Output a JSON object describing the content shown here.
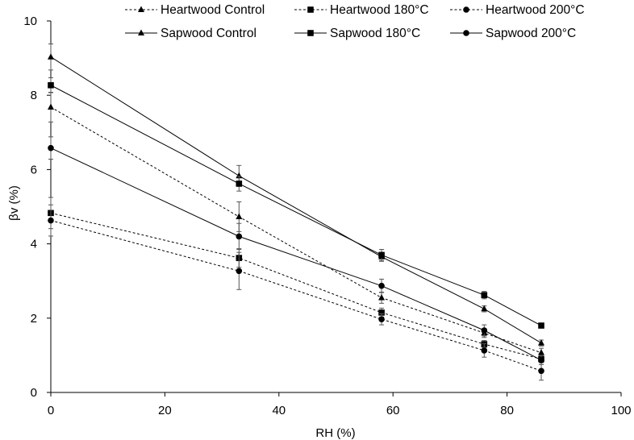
{
  "chart_data": {
    "type": "line",
    "title": "",
    "xlabel": "RH (%)",
    "ylabel": "βv (%)",
    "xlim": [
      0,
      100
    ],
    "ylim": [
      0,
      10
    ],
    "xticks": [
      "0",
      "20",
      "40",
      "60",
      "80",
      "100"
    ],
    "yticks": [
      "0",
      "2",
      "4",
      "6",
      "8",
      "10"
    ],
    "grid": false,
    "legend_position": "top",
    "x": [
      0,
      33,
      58,
      76,
      86
    ],
    "series": [
      {
        "name": "Heartwood Control",
        "marker": "triangle",
        "line": "dashed",
        "values": [
          7.68,
          4.73,
          2.55,
          1.6,
          1.07
        ],
        "errors": [
          0.4,
          0.4,
          0.15,
          0.12,
          0.12
        ]
      },
      {
        "name": "Heartwood 180°C",
        "marker": "square",
        "line": "dashed",
        "values": [
          4.83,
          3.62,
          2.15,
          1.3,
          0.9
        ],
        "errors": [
          0.42,
          0.25,
          0.12,
          0.1,
          0.1
        ]
      },
      {
        "name": "Heartwood 200°C",
        "marker": "circle",
        "line": "dashed",
        "values": [
          4.63,
          3.27,
          1.97,
          1.13,
          0.58
        ],
        "errors": [
          0.42,
          0.5,
          0.15,
          0.18,
          0.25
        ]
      },
      {
        "name": "Sapwood Control",
        "marker": "triangle",
        "line": "solid",
        "values": [
          9.03,
          5.83,
          3.65,
          2.25,
          1.33
        ],
        "errors": [
          0.35,
          0.28,
          0.12,
          0.08,
          0.08
        ]
      },
      {
        "name": "Sapwood 180°C",
        "marker": "square",
        "line": "solid",
        "values": [
          8.27,
          5.62,
          3.7,
          2.62,
          1.8
        ],
        "errors": [
          0.2,
          0.2,
          0.15,
          0.1,
          0.05
        ]
      },
      {
        "name": "Sapwood 200°C",
        "marker": "circle",
        "line": "solid",
        "values": [
          6.58,
          4.2,
          2.87,
          1.67,
          0.87
        ],
        "errors": [
          0.3,
          0.35,
          0.18,
          0.15,
          0.12
        ]
      }
    ]
  }
}
